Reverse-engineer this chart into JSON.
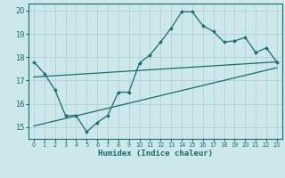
{
  "xlabel": "Humidex (Indice chaleur)",
  "bg_color": "#cce8ea",
  "grid_color": "#aacccc",
  "line_color": "#1a6b6b",
  "xlim": [
    -0.5,
    23.5
  ],
  "ylim": [
    14.5,
    20.3
  ],
  "xticks": [
    0,
    1,
    2,
    3,
    4,
    5,
    6,
    7,
    8,
    9,
    10,
    11,
    12,
    13,
    14,
    15,
    16,
    17,
    18,
    19,
    20,
    21,
    22,
    23
  ],
  "yticks": [
    15,
    16,
    17,
    18,
    19,
    20
  ],
  "main_x": [
    0,
    1,
    2,
    3,
    4,
    5,
    6,
    7,
    8,
    9,
    10,
    11,
    12,
    13,
    14,
    15,
    16,
    17,
    18,
    19,
    20,
    21,
    22,
    23
  ],
  "main_y": [
    17.8,
    17.3,
    16.6,
    15.5,
    15.5,
    14.8,
    15.2,
    15.5,
    16.5,
    16.5,
    17.75,
    18.1,
    18.65,
    19.25,
    19.95,
    19.95,
    19.35,
    19.1,
    18.65,
    18.7,
    18.85,
    18.2,
    18.4,
    17.8
  ],
  "line1_x": [
    0,
    23
  ],
  "line1_y": [
    17.15,
    17.8
  ],
  "line2_x": [
    0,
    23
  ],
  "line2_y": [
    15.05,
    17.55
  ]
}
